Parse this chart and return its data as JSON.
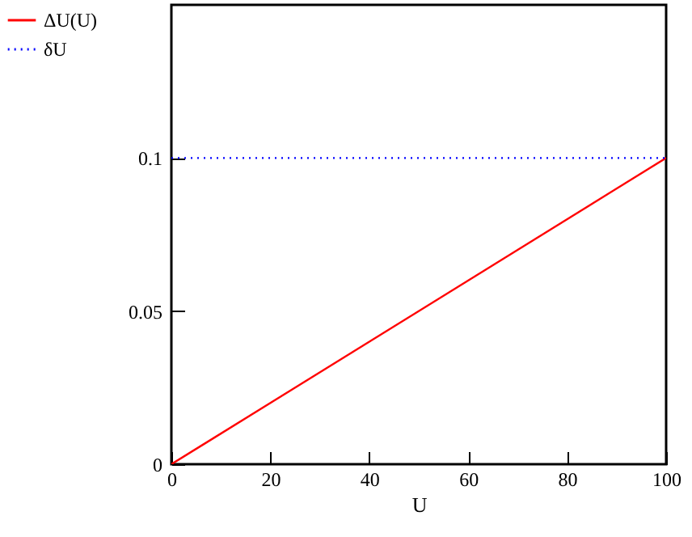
{
  "chart_data": {
    "type": "line",
    "xlabel": "U",
    "legend": "left",
    "grid": false,
    "marker": "none",
    "x": [
      0,
      100
    ],
    "xlim": [
      0,
      100
    ],
    "xticks": [
      0,
      20,
      40,
      60,
      80,
      100
    ],
    "ylim": [
      0,
      0.15
    ],
    "yticks": [
      0,
      0.05,
      0.1
    ],
    "series": [
      {
        "name": "ΔU(U)",
        "color": "#ff0000",
        "line_style": "solid",
        "values": [
          0,
          0.1
        ]
      },
      {
        "name": "δU",
        "color": "#0000ff",
        "line_style": "dotted",
        "values": [
          0.1,
          0.1
        ]
      }
    ]
  }
}
